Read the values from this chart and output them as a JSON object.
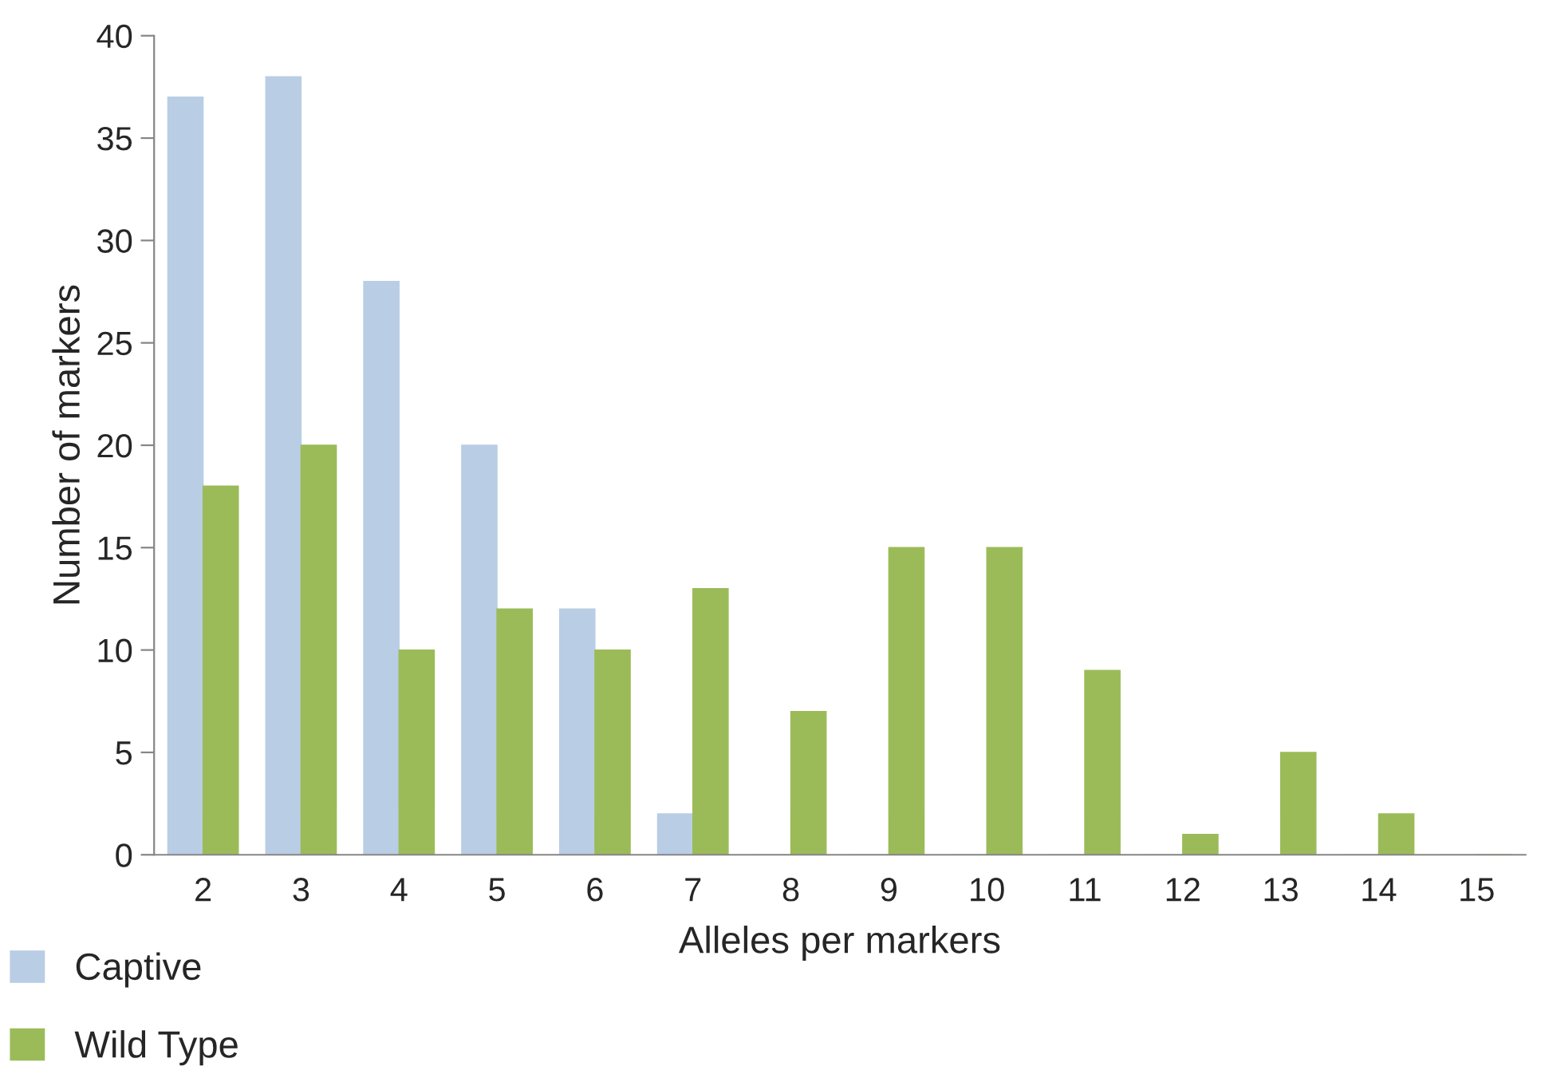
{
  "chart_data": {
    "type": "bar",
    "xlabel": "Alleles per markers",
    "ylabel": "Number of markers",
    "categories": [
      "2",
      "3",
      "4",
      "5",
      "6",
      "7",
      "8",
      "9",
      "10",
      "11",
      "12",
      "13",
      "14",
      "15"
    ],
    "series": [
      {
        "name": "Captive",
        "color": "#b9cde5",
        "values": [
          37,
          38,
          28,
          20,
          12,
          2,
          0,
          0,
          0,
          0,
          0,
          0,
          0,
          0
        ]
      },
      {
        "name": "Wild Type",
        "color": "#9bbb59",
        "values": [
          18,
          20,
          10,
          12,
          10,
          13,
          7,
          15,
          15,
          9,
          1,
          5,
          2,
          0
        ]
      }
    ],
    "ylim": [
      0,
      40
    ],
    "yticks": [
      0,
      5,
      10,
      15,
      20,
      25,
      30,
      35,
      40
    ],
    "grid": false,
    "legend": "bottom left"
  }
}
